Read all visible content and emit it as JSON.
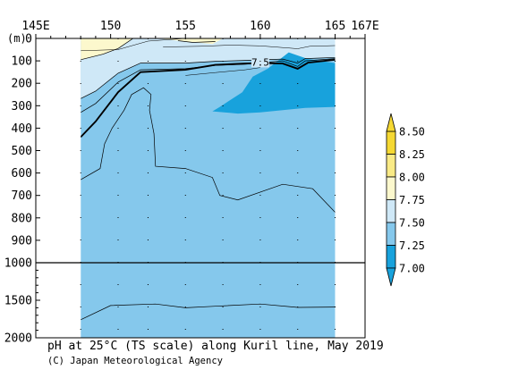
{
  "chart_data": {
    "type": "heatmap",
    "title": "pH at 25°C (TS scale) along Kuril line, May 2019",
    "credit": "(C) Japan Meteorological Agency",
    "x_axis": {
      "unit_ticks": [
        {
          "value": 145,
          "label": "145E"
        },
        {
          "value": 150,
          "label": "150"
        },
        {
          "value": 155,
          "label": "155"
        },
        {
          "value": 160,
          "label": "160"
        },
        {
          "value": 165,
          "label": "165"
        },
        {
          "value": 167,
          "label": "167E"
        }
      ],
      "range": [
        145,
        167
      ]
    },
    "y_axis": {
      "unit_label": "(m)",
      "upper_ticks": [
        {
          "value": 0,
          "label": "0"
        },
        {
          "value": 100,
          "label": "100"
        },
        {
          "value": 200,
          "label": "200"
        },
        {
          "value": 300,
          "label": "300"
        },
        {
          "value": 400,
          "label": "400"
        },
        {
          "value": 500,
          "label": "500"
        },
        {
          "value": 600,
          "label": "600"
        },
        {
          "value": 700,
          "label": "700"
        },
        {
          "value": 800,
          "label": "800"
        },
        {
          "value": 900,
          "label": "900"
        },
        {
          "value": 1000,
          "label": "1000"
        }
      ],
      "lower_ticks": [
        {
          "value": 1500,
          "label": "1500"
        },
        {
          "value": 2000,
          "label": "2000"
        }
      ],
      "break_at": 1000,
      "range": [
        0,
        2000
      ]
    },
    "station_longitudes": [
      148,
      150.5,
      152.5,
      155,
      157.5,
      160,
      162.5,
      165
    ],
    "contour_label": {
      "text": "7.5",
      "lon": 160,
      "depth": 105
    },
    "colorbar": {
      "levels": [
        "8.50",
        "8.25",
        "8.00",
        "7.75",
        "7.50",
        "7.25",
        "7.00"
      ],
      "colors": [
        "#f5d833",
        "#f9ea86",
        "#fcf8cd",
        "#cfe8f7",
        "#85c8ec",
        "#18a2dc"
      ]
    },
    "fill_colors": {
      "band_775_800": "#fcf8cd",
      "band_750_775": "#cfe8f7",
      "band_725_750": "#85c8ec",
      "band_700_725": "#18a2dc"
    },
    "extent": {
      "lon": [
        148,
        165
      ],
      "depth_max": 2000
    }
  }
}
